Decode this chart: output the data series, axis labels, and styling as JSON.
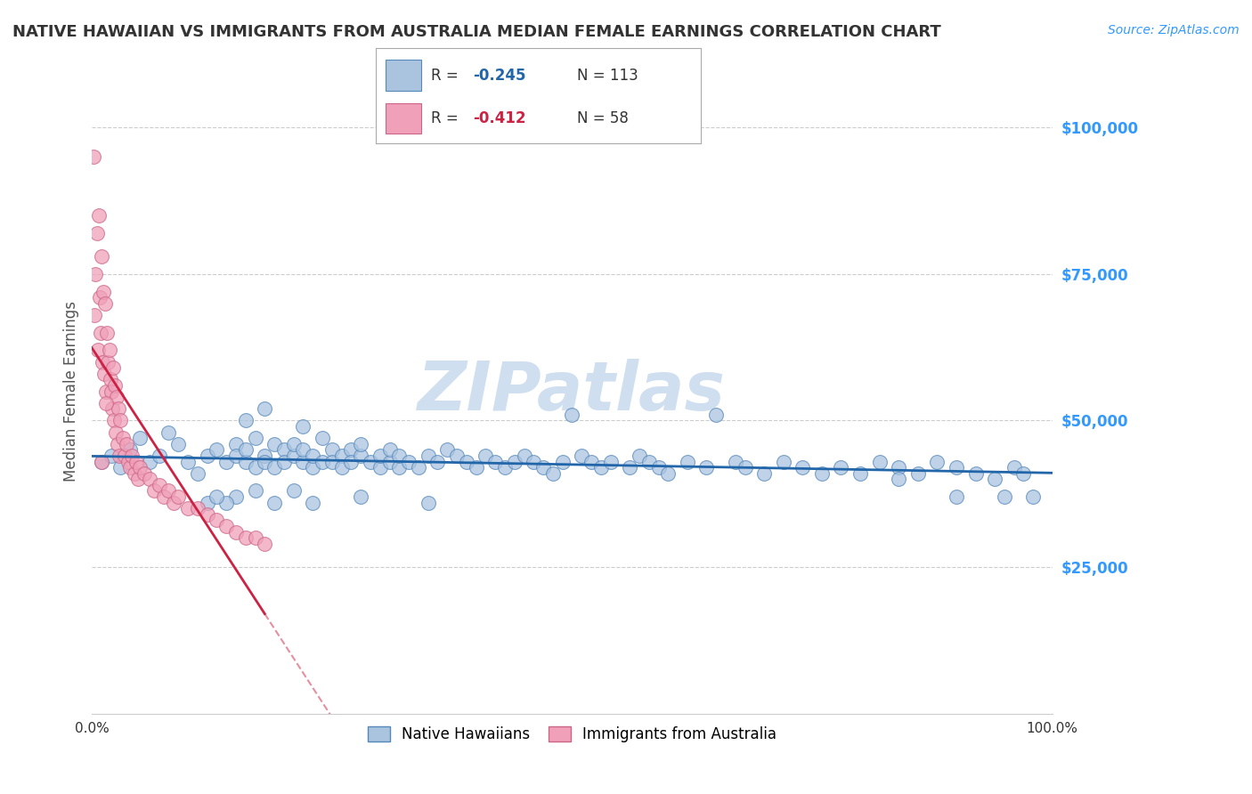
{
  "title": "NATIVE HAWAIIAN VS IMMIGRANTS FROM AUSTRALIA MEDIAN FEMALE EARNINGS CORRELATION CHART",
  "source_text": "Source: ZipAtlas.com",
  "ylabel": "Median Female Earnings",
  "xlim": [
    0,
    1.0
  ],
  "ylim": [
    0,
    110000
  ],
  "ytick_labels": [
    "$25,000",
    "$50,000",
    "$75,000",
    "$100,000"
  ],
  "ytick_values": [
    25000,
    50000,
    75000,
    100000
  ],
  "blue_color": "#aac4e0",
  "blue_edge_color": "#5588bb",
  "blue_line_color": "#2266aa",
  "pink_color": "#f0a0b8",
  "pink_edge_color": "#cc6688",
  "pink_line_color": "#cc2244",
  "watermark_color": "#d0dff0",
  "background_color": "#ffffff",
  "grid_color": "#cccccc",
  "title_color": "#333333",
  "source_color": "#3399ff",
  "ytick_color": "#3399ff",
  "legend_box_color": "#aaaaaa",
  "blue_r": "-0.245",
  "blue_n": "113",
  "pink_r": "-0.412",
  "pink_n": "58",
  "blue_scatter_x": [
    0.01,
    0.02,
    0.03,
    0.04,
    0.05,
    0.06,
    0.07,
    0.08,
    0.09,
    0.1,
    0.11,
    0.12,
    0.13,
    0.14,
    0.15,
    0.15,
    0.16,
    0.16,
    0.17,
    0.17,
    0.18,
    0.18,
    0.19,
    0.19,
    0.2,
    0.2,
    0.21,
    0.21,
    0.22,
    0.22,
    0.23,
    0.23,
    0.24,
    0.24,
    0.25,
    0.25,
    0.26,
    0.26,
    0.27,
    0.27,
    0.28,
    0.28,
    0.29,
    0.3,
    0.3,
    0.31,
    0.31,
    0.32,
    0.32,
    0.33,
    0.34,
    0.35,
    0.36,
    0.37,
    0.38,
    0.39,
    0.4,
    0.41,
    0.42,
    0.43,
    0.44,
    0.45,
    0.46,
    0.47,
    0.48,
    0.49,
    0.5,
    0.51,
    0.52,
    0.53,
    0.54,
    0.56,
    0.57,
    0.58,
    0.59,
    0.6,
    0.62,
    0.64,
    0.65,
    0.67,
    0.68,
    0.7,
    0.72,
    0.74,
    0.76,
    0.78,
    0.8,
    0.82,
    0.84,
    0.86,
    0.88,
    0.9,
    0.92,
    0.94,
    0.96,
    0.97,
    0.98,
    0.84,
    0.9,
    0.95,
    0.16,
    0.18,
    0.22,
    0.28,
    0.35,
    0.15,
    0.17,
    0.19,
    0.21,
    0.23,
    0.12,
    0.14,
    0.13
  ],
  "blue_scatter_y": [
    43000,
    44000,
    42000,
    45000,
    47000,
    43000,
    44000,
    48000,
    46000,
    43000,
    41000,
    44000,
    45000,
    43000,
    46000,
    44000,
    43000,
    45000,
    42000,
    47000,
    44000,
    43000,
    46000,
    42000,
    45000,
    43000,
    44000,
    46000,
    43000,
    45000,
    42000,
    44000,
    43000,
    47000,
    45000,
    43000,
    44000,
    42000,
    45000,
    43000,
    44000,
    46000,
    43000,
    42000,
    44000,
    43000,
    45000,
    42000,
    44000,
    43000,
    42000,
    44000,
    43000,
    45000,
    44000,
    43000,
    42000,
    44000,
    43000,
    42000,
    43000,
    44000,
    43000,
    42000,
    41000,
    43000,
    51000,
    44000,
    43000,
    42000,
    43000,
    42000,
    44000,
    43000,
    42000,
    41000,
    43000,
    42000,
    51000,
    43000,
    42000,
    41000,
    43000,
    42000,
    41000,
    42000,
    41000,
    43000,
    42000,
    41000,
    43000,
    42000,
    41000,
    40000,
    42000,
    41000,
    37000,
    40000,
    37000,
    37000,
    50000,
    52000,
    49000,
    37000,
    36000,
    37000,
    38000,
    36000,
    38000,
    36000,
    36000,
    36000,
    37000
  ],
  "pink_scatter_x": [
    0.002,
    0.003,
    0.004,
    0.005,
    0.006,
    0.007,
    0.008,
    0.009,
    0.01,
    0.011,
    0.012,
    0.013,
    0.014,
    0.015,
    0.016,
    0.017,
    0.018,
    0.019,
    0.02,
    0.021,
    0.022,
    0.023,
    0.024,
    0.025,
    0.026,
    0.027,
    0.028,
    0.029,
    0.03,
    0.032,
    0.034,
    0.036,
    0.038,
    0.04,
    0.042,
    0.044,
    0.046,
    0.048,
    0.05,
    0.055,
    0.06,
    0.065,
    0.07,
    0.075,
    0.08,
    0.085,
    0.09,
    0.1,
    0.11,
    0.12,
    0.13,
    0.14,
    0.15,
    0.16,
    0.17,
    0.18,
    0.01,
    0.015
  ],
  "pink_scatter_y": [
    95000,
    68000,
    75000,
    82000,
    62000,
    85000,
    71000,
    65000,
    78000,
    60000,
    72000,
    58000,
    70000,
    55000,
    65000,
    60000,
    62000,
    57000,
    55000,
    52000,
    59000,
    50000,
    56000,
    48000,
    54000,
    46000,
    52000,
    44000,
    50000,
    47000,
    44000,
    46000,
    43000,
    42000,
    44000,
    41000,
    43000,
    40000,
    42000,
    41000,
    40000,
    38000,
    39000,
    37000,
    38000,
    36000,
    37000,
    35000,
    35000,
    34000,
    33000,
    32000,
    31000,
    30000,
    30000,
    29000,
    43000,
    53000
  ]
}
